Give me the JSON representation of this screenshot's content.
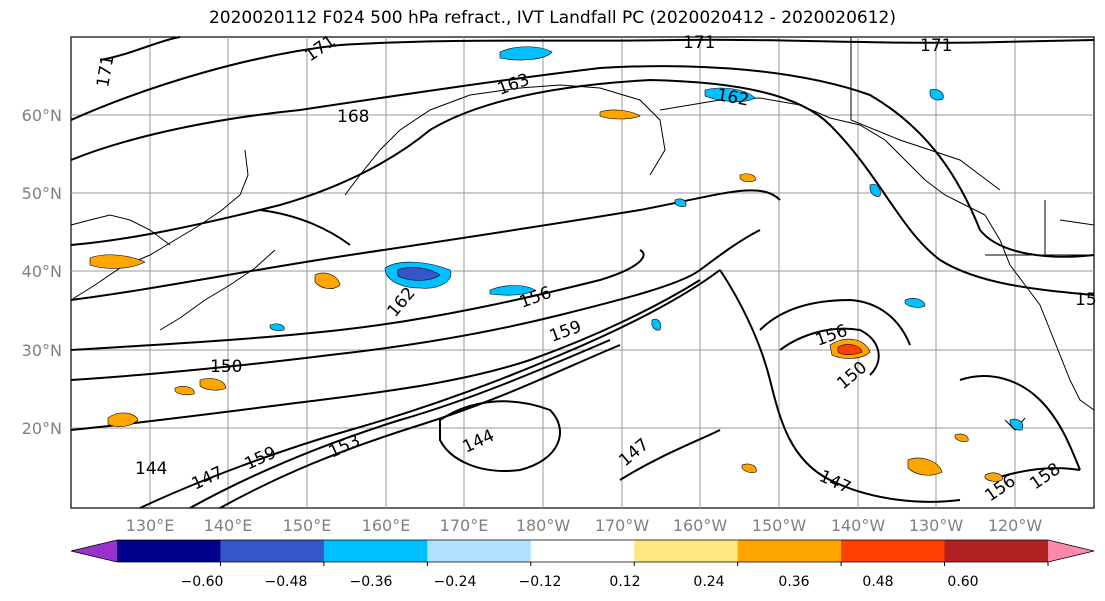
{
  "title": "2020020112 F024 500 hPa refract., IVT Landfall PC (2020020412 - 2020020612)",
  "map": {
    "lat_labels": [
      "60°N",
      "50°N",
      "40°N",
      "30°N",
      "20°N"
    ],
    "lon_labels": [
      "130°E",
      "140°E",
      "150°E",
      "160°E",
      "170°E",
      "180°W",
      "170°W",
      "160°W",
      "150°W",
      "140°W",
      "130°W",
      "120°W"
    ],
    "contour_labels": [
      "171",
      "171",
      "171",
      "171",
      "168",
      "163",
      "162",
      "162",
      "156",
      "159",
      "156",
      "150",
      "150",
      "144",
      "144",
      "147",
      "147",
      "147",
      "153",
      "159",
      "156",
      "158",
      "15"
    ]
  },
  "colorbar": {
    "ticks": [
      "−0.60",
      "−0.48",
      "−0.36",
      "−0.24",
      "−0.12",
      "0.12",
      "0.24",
      "0.36",
      "0.48",
      "0.60"
    ],
    "colors": [
      "#9932cc",
      "#00008b",
      "#3556c8",
      "#00bfff",
      "#b0e2ff",
      "#ffffff",
      "#ffe680",
      "#ffa500",
      "#ff4000",
      "#b22222",
      "#ff88aa"
    ]
  }
}
